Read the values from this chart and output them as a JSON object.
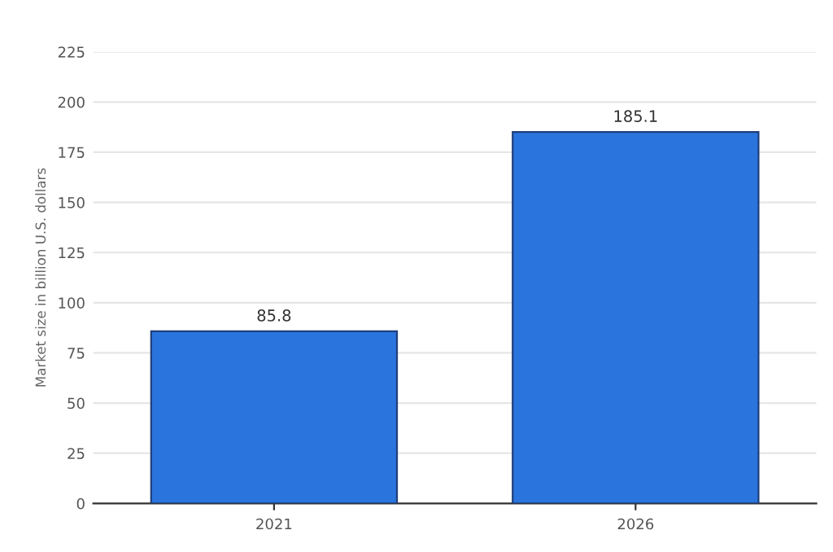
{
  "chart_data": {
    "type": "bar",
    "ylabel": "Market size in billion U.S. dollars",
    "categories": [
      "2021",
      "2026"
    ],
    "series": [
      {
        "color": "#2a74dd",
        "values": [
          85.8,
          185.1
        ]
      }
    ],
    "ylim": [
      0,
      225
    ],
    "yticks": [
      0,
      25,
      50,
      75,
      100,
      125,
      150,
      175,
      200,
      225
    ],
    "grid": "y",
    "data_labels": true
  }
}
